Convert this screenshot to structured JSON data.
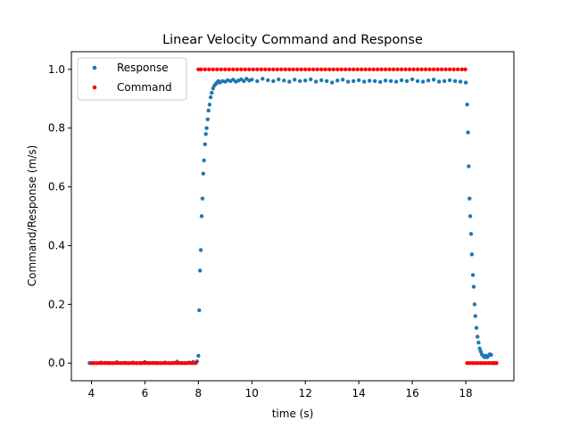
{
  "chart_data": {
    "type": "scatter",
    "title": "Linear Velocity Command and Response",
    "xlabel": "time (s)",
    "ylabel": "Command/Response (m/s)",
    "xlim": [
      3.25,
      19.8
    ],
    "ylim": [
      -0.06,
      1.06
    ],
    "xticks": [
      4,
      6,
      8,
      10,
      12,
      14,
      16,
      18
    ],
    "yticks": [
      0.0,
      0.2,
      0.4,
      0.6,
      0.8,
      1.0
    ],
    "grid": false,
    "legend_position": "top-left",
    "series": [
      {
        "name": "Response",
        "color": "#1f77b4",
        "marker": "circle",
        "x": [
          3.93,
          4.05,
          4.2,
          4.35,
          4.5,
          4.65,
          4.8,
          4.95,
          5.1,
          5.25,
          5.4,
          5.55,
          5.7,
          5.85,
          6.0,
          6.15,
          6.3,
          6.45,
          6.6,
          6.75,
          6.9,
          7.05,
          7.2,
          7.35,
          7.5,
          7.65,
          7.8,
          7.95,
          8.0,
          8.03,
          8.06,
          8.09,
          8.12,
          8.15,
          8.18,
          8.21,
          8.25,
          8.28,
          8.31,
          8.35,
          8.38,
          8.42,
          8.46,
          8.5,
          8.55,
          8.6,
          8.65,
          8.7,
          8.75,
          8.8,
          8.9,
          9.0,
          9.1,
          9.2,
          9.3,
          9.4,
          9.5,
          9.6,
          9.7,
          9.8,
          9.9,
          10.0,
          10.2,
          10.4,
          10.6,
          10.8,
          11.0,
          11.2,
          11.4,
          11.6,
          11.8,
          12.0,
          12.2,
          12.4,
          12.6,
          12.8,
          13.0,
          13.2,
          13.4,
          13.6,
          13.8,
          14.0,
          14.2,
          14.4,
          14.6,
          14.8,
          15.0,
          15.2,
          15.4,
          15.6,
          15.8,
          16.0,
          16.2,
          16.4,
          16.6,
          16.8,
          17.0,
          17.2,
          17.4,
          17.6,
          17.8,
          18.0,
          18.05,
          18.08,
          18.11,
          18.14,
          18.17,
          18.2,
          18.23,
          18.27,
          18.3,
          18.33,
          18.36,
          18.4,
          18.44,
          18.48,
          18.52,
          18.56,
          18.6,
          18.65,
          18.7,
          18.75,
          18.8,
          18.85,
          18.9,
          18.95,
          19.0,
          19.05,
          19.1
        ],
        "y": [
          0.0,
          0.0,
          0.0,
          0.002,
          0.001,
          0.0,
          0.0,
          0.003,
          0.0,
          0.001,
          0.0,
          0.002,
          0.0,
          0.0,
          0.004,
          0.0,
          0.001,
          0.0,
          0.0,
          0.002,
          0.0,
          0.001,
          0.005,
          0.0,
          0.0,
          0.002,
          0.004,
          0.006,
          0.025,
          0.18,
          0.315,
          0.385,
          0.5,
          0.56,
          0.645,
          0.69,
          0.745,
          0.78,
          0.8,
          0.83,
          0.86,
          0.88,
          0.905,
          0.92,
          0.935,
          0.945,
          0.95,
          0.955,
          0.96,
          0.955,
          0.96,
          0.958,
          0.963,
          0.96,
          0.965,
          0.958,
          0.962,
          0.966,
          0.96,
          0.968,
          0.962,
          0.965,
          0.96,
          0.968,
          0.963,
          0.96,
          0.966,
          0.962,
          0.958,
          0.965,
          0.96,
          0.962,
          0.966,
          0.958,
          0.963,
          0.96,
          0.955,
          0.962,
          0.965,
          0.958,
          0.96,
          0.963,
          0.958,
          0.961,
          0.96,
          0.957,
          0.962,
          0.96,
          0.958,
          0.963,
          0.96,
          0.966,
          0.96,
          0.958,
          0.962,
          0.965,
          0.958,
          0.96,
          0.963,
          0.96,
          0.958,
          0.955,
          0.88,
          0.785,
          0.67,
          0.56,
          0.5,
          0.44,
          0.37,
          0.3,
          0.26,
          0.2,
          0.16,
          0.12,
          0.09,
          0.07,
          0.05,
          0.04,
          0.03,
          0.025,
          0.02,
          0.025,
          0.02,
          0.025,
          0.03,
          0.028,
          0.0,
          0.0,
          0.0
        ]
      },
      {
        "name": "Command",
        "color": "#ff0000",
        "marker": "circle",
        "x": [
          4.0,
          4.1,
          4.2,
          4.3,
          4.4,
          4.5,
          4.6,
          4.7,
          4.8,
          4.9,
          5.0,
          5.1,
          5.2,
          5.3,
          5.4,
          5.5,
          5.6,
          5.7,
          5.8,
          5.9,
          6.0,
          6.1,
          6.2,
          6.3,
          6.4,
          6.5,
          6.6,
          6.7,
          6.8,
          6.9,
          7.0,
          7.1,
          7.2,
          7.3,
          7.4,
          7.5,
          7.6,
          7.7,
          7.8,
          7.9,
          8.0,
          8.1,
          8.25,
          8.4,
          8.55,
          8.7,
          8.85,
          9.0,
          9.15,
          9.3,
          9.45,
          9.6,
          9.75,
          9.9,
          10.05,
          10.2,
          10.35,
          10.5,
          10.65,
          10.8,
          10.95,
          11.1,
          11.25,
          11.4,
          11.55,
          11.7,
          11.85,
          12.0,
          12.15,
          12.3,
          12.45,
          12.6,
          12.75,
          12.9,
          13.05,
          13.2,
          13.35,
          13.5,
          13.65,
          13.8,
          13.95,
          14.1,
          14.25,
          14.4,
          14.55,
          14.7,
          14.85,
          15.0,
          15.15,
          15.3,
          15.45,
          15.6,
          15.75,
          15.9,
          16.05,
          16.2,
          16.35,
          16.5,
          16.65,
          16.8,
          16.95,
          17.1,
          17.25,
          17.4,
          17.55,
          17.7,
          17.85,
          17.98,
          18.05,
          18.15,
          18.25,
          18.35,
          18.45,
          18.55,
          18.65,
          18.75,
          18.85,
          18.95,
          19.05,
          19.15
        ],
        "y": [
          0,
          0,
          0,
          0,
          0,
          0,
          0,
          0,
          0,
          0,
          0,
          0,
          0,
          0,
          0,
          0,
          0,
          0,
          0,
          0,
          0,
          0,
          0,
          0,
          0,
          0,
          0,
          0,
          0,
          0,
          0,
          0,
          0,
          0,
          0,
          0,
          0,
          0,
          0,
          0,
          1,
          1,
          1,
          1,
          1,
          1,
          1,
          1,
          1,
          1,
          1,
          1,
          1,
          1,
          1,
          1,
          1,
          1,
          1,
          1,
          1,
          1,
          1,
          1,
          1,
          1,
          1,
          1,
          1,
          1,
          1,
          1,
          1,
          1,
          1,
          1,
          1,
          1,
          1,
          1,
          1,
          1,
          1,
          1,
          1,
          1,
          1,
          1,
          1,
          1,
          1,
          1,
          1,
          1,
          1,
          1,
          1,
          1,
          1,
          1,
          1,
          1,
          1,
          1,
          1,
          1,
          1,
          1,
          0,
          0,
          0,
          0,
          0,
          0,
          0,
          0,
          0,
          0,
          0,
          0
        ]
      }
    ]
  }
}
